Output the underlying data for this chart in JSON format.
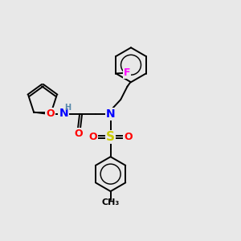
{
  "bg_color": "#e8e8e8",
  "atom_colors": {
    "O": "#ff0000",
    "N": "#0000ff",
    "S": "#cccc00",
    "F": "#ff00ff",
    "H": "#5588aa",
    "C": "#000000"
  },
  "bond_color": "#000000",
  "figsize": [
    3.0,
    3.0
  ],
  "dpi": 100,
  "xlim": [
    0,
    10
  ],
  "ylim": [
    0,
    10
  ]
}
